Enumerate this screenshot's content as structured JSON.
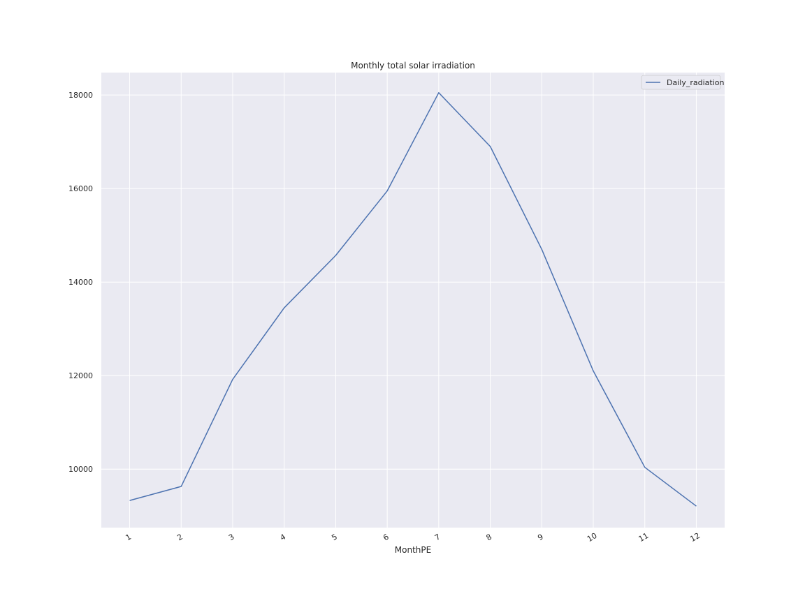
{
  "chart_data": {
    "type": "line",
    "title": "Monthly total solar irradiation",
    "xlabel": "MonthPE",
    "ylabel": "",
    "categories": [
      "1",
      "2",
      "3",
      "4",
      "5",
      "6",
      "7",
      "8",
      "9",
      "10",
      "11",
      "12"
    ],
    "x": [
      1,
      2,
      3,
      4,
      5,
      6,
      7,
      8,
      9,
      10,
      11,
      12
    ],
    "series": [
      {
        "name": "Daily_radiation",
        "color": "#4c72b0",
        "values": [
          9330,
          9630,
          11920,
          13450,
          14570,
          15950,
          18050,
          16900,
          14700,
          12100,
          10040,
          9210
        ]
      }
    ],
    "xlim": [
      0.45,
      12.55
    ],
    "ylim": [
      8750,
      18480
    ],
    "yticks": [
      10000,
      12000,
      14000,
      16000,
      18000
    ],
    "ytick_labels": [
      "10000",
      "12000",
      "14000",
      "16000",
      "18000"
    ],
    "grid": true,
    "legend_position": "top-right",
    "colors": {
      "plot_background": "#eaeaf2",
      "grid": "#ffffff",
      "text": "#262626",
      "line": "#4c72b0"
    }
  }
}
